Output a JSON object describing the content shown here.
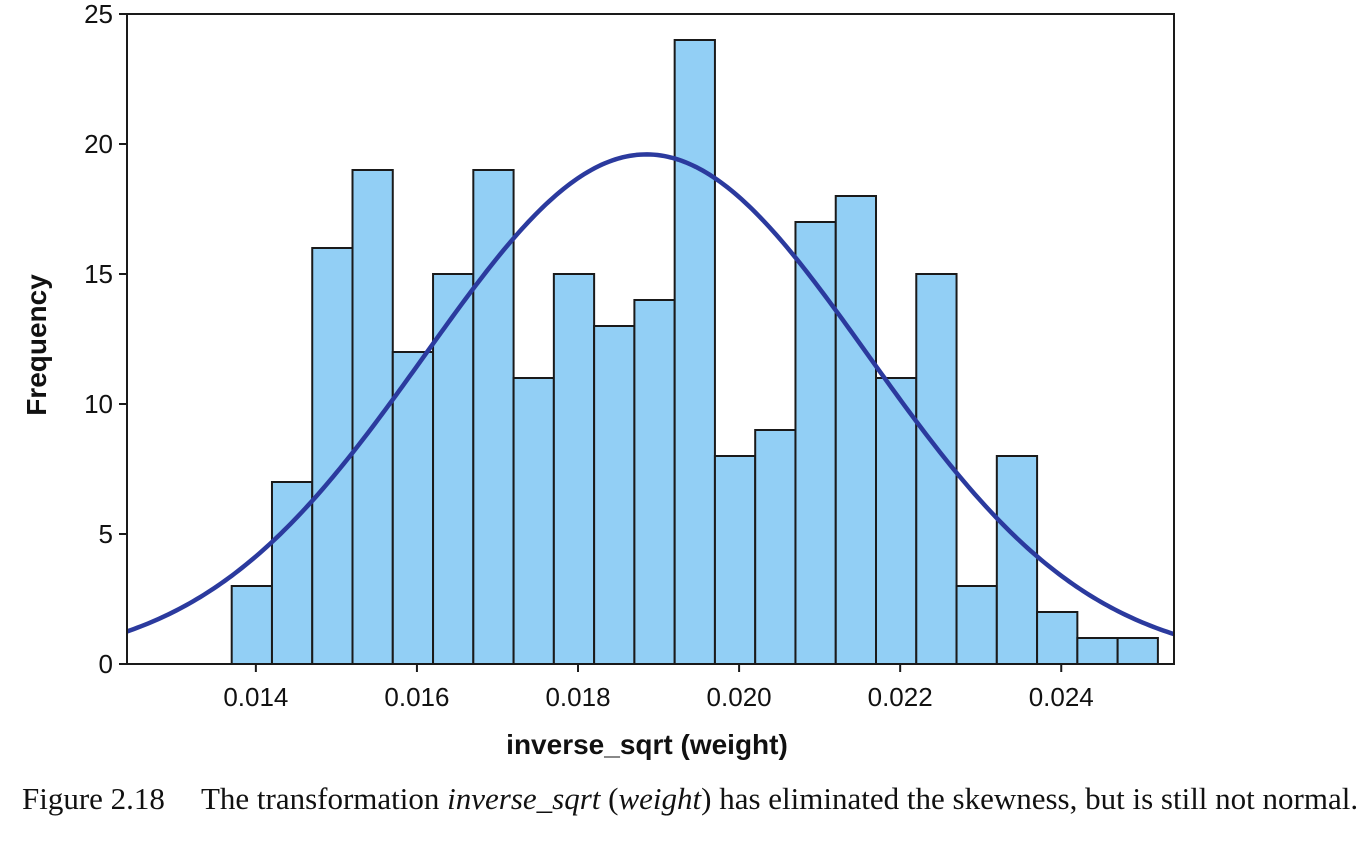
{
  "chart_data": {
    "type": "bar",
    "subtype": "histogram",
    "xlabel": "inverse_sqrt (weight)",
    "ylabel": "Frequency",
    "xlim": [
      0.0124,
      0.0254
    ],
    "ylim": [
      0,
      25
    ],
    "xticks": [
      0.014,
      0.016,
      0.018,
      0.02,
      0.022,
      0.024
    ],
    "xtick_labels": [
      "0.014",
      "0.016",
      "0.018",
      "0.020",
      "0.022",
      "0.024"
    ],
    "yticks": [
      0,
      5,
      10,
      15,
      20,
      25
    ],
    "ytick_labels": [
      "0",
      "5",
      "10",
      "15",
      "20",
      "25"
    ],
    "bin_start": 0.0137,
    "bin_width": 0.0005,
    "values": [
      3,
      7,
      16,
      19,
      12,
      15,
      19,
      11,
      15,
      13,
      14,
      24,
      8,
      9,
      17,
      18,
      11,
      15,
      3,
      8,
      2,
      1,
      1
    ],
    "normal_curve": {
      "mean": 0.01885,
      "peak": 19.6,
      "sd": 0.00275
    },
    "colors": {
      "bar_fill": "#92cff5",
      "bar_stroke": "#1a1a1a",
      "curve": "#2b3a9e"
    },
    "grid": false,
    "legend": "none"
  },
  "caption": {
    "number": "Figure 2.18",
    "text_before": "The transformation ",
    "em_1": "inverse_sqrt",
    "text_mid_1": " (",
    "em_2": "weight",
    "text_after": ") has eliminated the skewness, but is still not normal."
  }
}
